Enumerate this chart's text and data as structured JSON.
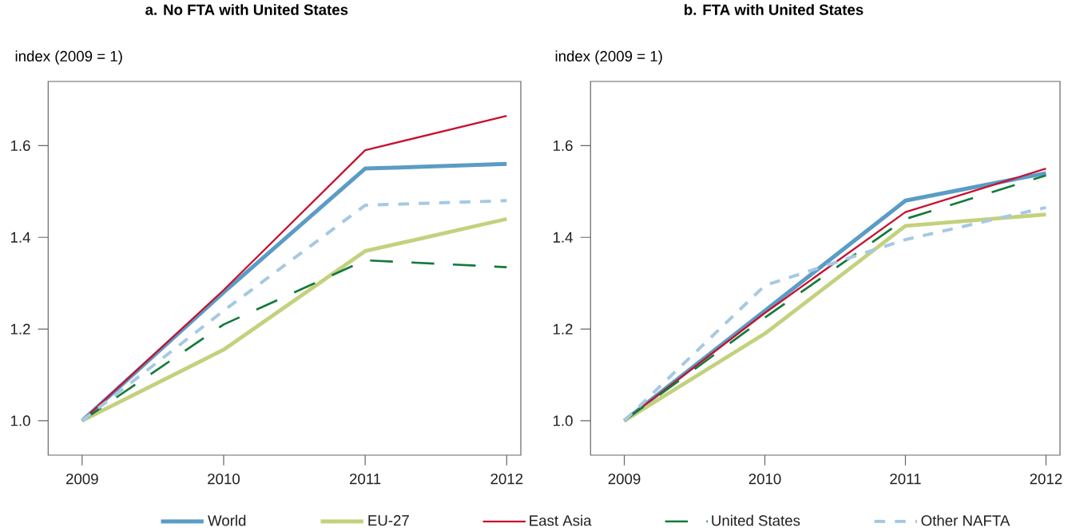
{
  "chart_data": [
    {
      "type": "line",
      "title": "a. No FTA with United States",
      "ylabel": "index (2009 = 1)",
      "x": [
        2009,
        2010,
        2011,
        2012
      ],
      "xlim": [
        2008.76,
        2012.1
      ],
      "xticks": [
        2009,
        2010,
        2011,
        2012
      ],
      "ylim": [
        0.925,
        1.74
      ],
      "yticks": [
        {
          "value": 1,
          "label": "1.0"
        },
        1.2,
        1.4,
        1.6
      ],
      "legend": "bottom",
      "series": [
        {
          "name": "World",
          "color": "#5a9cc5",
          "values": [
            1,
            1.28,
            1.55,
            1.56
          ]
        },
        {
          "name": "EU-27",
          "color": "#c4d17d",
          "values": [
            1,
            1.155,
            1.37,
            1.44
          ]
        },
        {
          "name": "East Asia",
          "color": "#c8102e",
          "values": [
            1,
            1.285,
            1.59,
            1.665
          ]
        },
        {
          "name": "United States",
          "color": "#137a3b",
          "values": [
            1,
            1.21,
            1.35,
            1.335
          ],
          "line_style": "dashed"
        },
        {
          "name": "Other NAFTA",
          "color": "#a6c9e2",
          "values": [
            1,
            1.24,
            1.47,
            1.48
          ],
          "line_style": "dashed"
        }
      ]
    },
    {
      "type": "line",
      "title": "b. FTA with United States",
      "ylabel": "index (2009 = 1)",
      "x": [
        2009,
        2010,
        2011,
        2012
      ],
      "xlim": [
        2008.76,
        2012.1
      ],
      "xticks": [
        2009,
        2010,
        2011,
        2012
      ],
      "ylim": [
        0.925,
        1.74
      ],
      "yticks": [
        {
          "value": 1,
          "label": "1.0"
        },
        1.2,
        1.4,
        1.6
      ],
      "series": [
        {
          "color": "#5a9cc5",
          "values": [
            1,
            1.24,
            1.48,
            1.54
          ]
        },
        {
          "color": "#c4d17d",
          "values": [
            1,
            1.19,
            1.425,
            1.45
          ]
        },
        {
          "color": "#c8102e",
          "values": [
            1,
            1.235,
            1.455,
            1.55
          ]
        },
        {
          "color": "#137a3b",
          "values": [
            1,
            1.225,
            1.44,
            1.535
          ],
          "line_style": "dashed"
        },
        {
          "color": "#a6c9e2",
          "values": [
            1,
            1.295,
            1.395,
            1.465
          ],
          "line_style": "dashed"
        }
      ]
    }
  ]
}
